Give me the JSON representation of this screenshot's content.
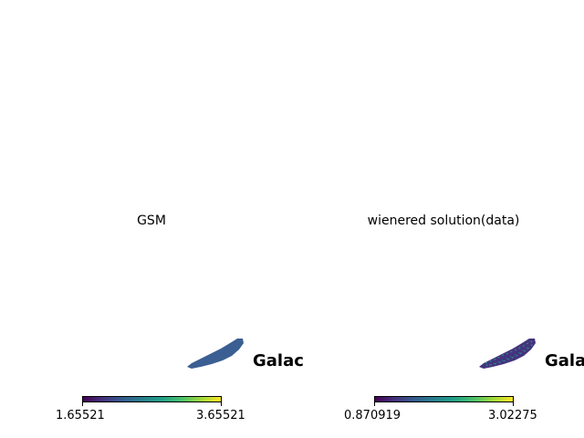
{
  "chart_data": [
    {
      "type": "heatmap",
      "title": "GSM",
      "projection_label": "Galac",
      "colorbar": {
        "min_label": "1.65521",
        "max_label": "3.65521",
        "colormap": "viridis"
      },
      "region_color": "#3b5f92"
    },
    {
      "type": "heatmap",
      "title": "wienered solution(data)",
      "projection_label": "Gala",
      "colorbar": {
        "min_label": "0.870919",
        "max_label": "3.02275",
        "colormap": "viridis"
      },
      "region_color": "#45337e"
    }
  ]
}
